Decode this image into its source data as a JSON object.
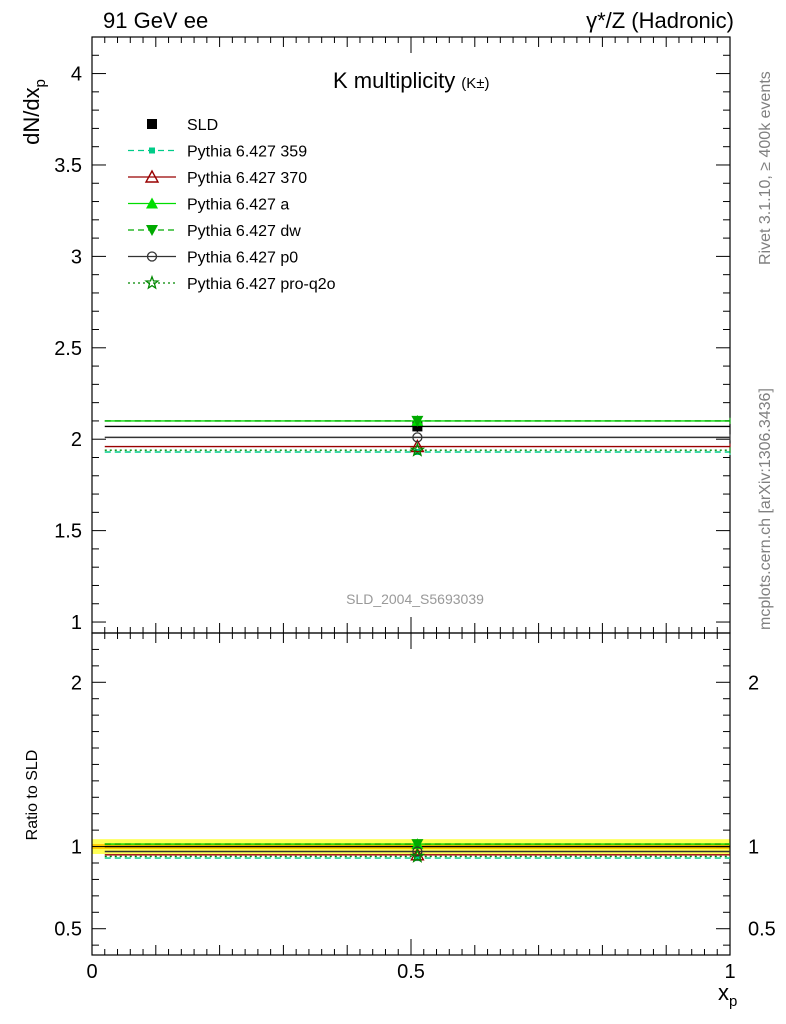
{
  "header": {
    "left": "91 GeV ee",
    "right": "γ*/Z (Hadronic)"
  },
  "side_labels": {
    "rivet": "Rivet 3.1.10, ≥ 400k events",
    "mcplots": "mcplots.cern.ch [arXiv:1306.3436]"
  },
  "colors": {
    "data": "#000000",
    "359": "#00cc88",
    "370": "#990000",
    "a": "#00dd00",
    "dw": "#00aa00",
    "p0": "#333333",
    "pro-q2o": "#008800",
    "band_outer": "#ffff55",
    "band_inner": "#ffcc00"
  },
  "chart_data": [
    {
      "type": "scatter",
      "title": "K multiplicity",
      "title_sub": "(K±)",
      "ylabel": "dN/dx",
      "ylabel_sub": "p",
      "analysis_label": "SLD_2004_S5693039",
      "xlim": [
        0,
        1
      ],
      "ylim": [
        0.94,
        4.2
      ],
      "yticks": [
        "1",
        "1.5",
        "2",
        "2.5",
        "3",
        "3.5",
        "4"
      ],
      "legend_position": "top-left",
      "series": [
        {
          "name": "SLD",
          "key": "data",
          "style": "solid",
          "marker": "square",
          "x": [
            0.51
          ],
          "y": [
            2.07
          ],
          "xerr": [
            0.49
          ],
          "yerr": [
            0.03
          ]
        },
        {
          "name": "Pythia 6.427 359",
          "key": "359",
          "style": "dashed",
          "marker": "smallsquare",
          "x": [
            0.51
          ],
          "y": [
            1.93
          ],
          "xerr": [
            0.49
          ]
        },
        {
          "name": "Pythia 6.427 370",
          "key": "370",
          "style": "solid",
          "marker": "triangle-open",
          "x": [
            0.51
          ],
          "y": [
            1.96
          ],
          "xerr": [
            0.49
          ]
        },
        {
          "name": "Pythia 6.427 a",
          "key": "a",
          "style": "solid",
          "marker": "triangle",
          "x": [
            0.51
          ],
          "y": [
            2.1
          ],
          "xerr": [
            0.49
          ]
        },
        {
          "name": "Pythia 6.427 dw",
          "key": "dw",
          "style": "dashed",
          "marker": "triangle-down",
          "x": [
            0.51
          ],
          "y": [
            2.1
          ],
          "xerr": [
            0.49
          ]
        },
        {
          "name": "Pythia 6.427 p0",
          "key": "p0",
          "style": "solid",
          "marker": "circle-open",
          "x": [
            0.51
          ],
          "y": [
            2.01
          ],
          "xerr": [
            0.49
          ]
        },
        {
          "name": "Pythia 6.427 pro-q2o",
          "key": "pro-q2o",
          "style": "dotted",
          "marker": "star-open",
          "x": [
            0.51
          ],
          "y": [
            1.94
          ],
          "xerr": [
            0.49
          ]
        }
      ]
    },
    {
      "type": "scatter",
      "title": "",
      "ylabel": "Ratio to SLD",
      "xlabel": "x",
      "xlabel_sub": "p",
      "xlim": [
        0,
        1
      ],
      "ylim": [
        0.34,
        2.3
      ],
      "yticks": [
        "0.5",
        "1",
        "2"
      ],
      "xticks": [
        "0",
        "0.5",
        "1"
      ],
      "reference_band": {
        "inner": [
          0.985,
          1.015
        ],
        "outer": [
          0.955,
          1.045
        ]
      },
      "series": [
        {
          "key": "data",
          "x": [
            0.51
          ],
          "y": [
            1.0
          ]
        },
        {
          "key": "359",
          "x": [
            0.51
          ],
          "y": [
            0.93
          ]
        },
        {
          "key": "370",
          "x": [
            0.51
          ],
          "y": [
            0.95
          ]
        },
        {
          "key": "a",
          "x": [
            0.51
          ],
          "y": [
            1.015
          ]
        },
        {
          "key": "dw",
          "x": [
            0.51
          ],
          "y": [
            1.015
          ]
        },
        {
          "key": "p0",
          "x": [
            0.51
          ],
          "y": [
            0.97
          ]
        },
        {
          "key": "pro-q2o",
          "x": [
            0.51
          ],
          "y": [
            0.94
          ]
        }
      ]
    }
  ]
}
